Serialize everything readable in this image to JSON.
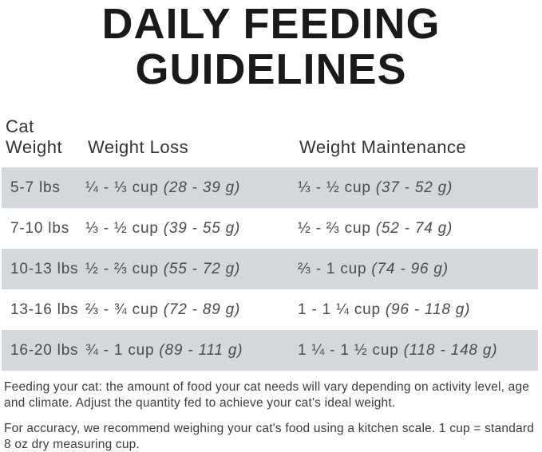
{
  "title": {
    "line1": "DAILY FEEDING",
    "line2": "GUIDELINES"
  },
  "table": {
    "header": {
      "col1_line1": "Cat",
      "col1_line2": "Weight",
      "col2": "Weight Loss",
      "col3": "Weight Maintenance"
    },
    "rows": [
      {
        "weight": "5-7 lbs",
        "loss_cups": "¼ - ⅓ cup",
        "loss_grams": "(28 - 39 g)",
        "maintenance_cups": "⅓ - ½ cup",
        "maintenance_grams": "(37 - 52 g)"
      },
      {
        "weight": "7-10 lbs",
        "loss_cups": "⅓ - ½ cup",
        "loss_grams": "(39 - 55 g)",
        "maintenance_cups": "½ - ⅔ cup",
        "maintenance_grams": "(52 - 74 g)"
      },
      {
        "weight": "10-13 lbs",
        "loss_cups": "½ - ⅔ cup",
        "loss_grams": "(55 - 72 g)",
        "maintenance_cups": "⅔ - 1 cup",
        "maintenance_grams": "(74 - 96 g)"
      },
      {
        "weight": "13-16 lbs",
        "loss_cups": "⅔ - ¾ cup",
        "loss_grams": "(72 - 89 g)",
        "maintenance_cups": "1 - 1 ¼ cup",
        "maintenance_grams": "(96 - 118 g)"
      },
      {
        "weight": "16-20 lbs",
        "loss_cups": "¾ - 1 cup",
        "loss_grams": "(89 - 111 g)",
        "maintenance_cups": "1 ¼ - 1 ½ cup",
        "maintenance_grams": "(118 - 148 g)"
      }
    ]
  },
  "notes": {
    "para1": "Feeding your cat: the amount of food your cat needs will vary depending on activity level, age and climate. Adjust the quantity fed to achieve your cat's ideal weight.",
    "para2": "For accuracy, we recommend weighing your cat's food using a kitchen scale. 1 cup = standard 8 oz dry measuring cup."
  },
  "colors": {
    "stripe": "#d4d8dc",
    "title_text": "#1a1a1a",
    "header_text": "#333333",
    "cell_text": "#4b4b4b",
    "note_text": "#3c3c3c",
    "background": "#ffffff"
  }
}
